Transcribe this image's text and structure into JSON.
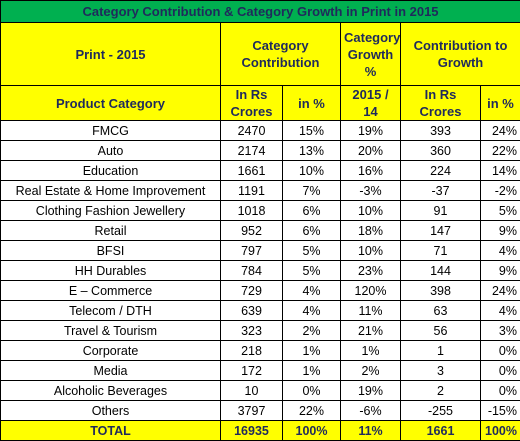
{
  "title": "Category Contribution & Category Growth in Print in 2015",
  "header": {
    "group_row": [
      "Print - 2015",
      "Category Contribution",
      "Category Growth %",
      "Contribution to Growth"
    ],
    "sub_row": [
      "Product Category",
      "In Rs Crores",
      "in %",
      "2015 / 14",
      "In Rs Crores",
      "in %"
    ]
  },
  "table": {
    "rows": [
      [
        "FMCG",
        "2470",
        "15%",
        "19%",
        "393",
        "24%"
      ],
      [
        "Auto",
        "2174",
        "13%",
        "20%",
        "360",
        "22%"
      ],
      [
        "Education",
        "1661",
        "10%",
        "16%",
        "224",
        "14%"
      ],
      [
        "Real Estate & Home Improvement",
        "1191",
        "7%",
        "-3%",
        "-37",
        "-2%"
      ],
      [
        "Clothing Fashion Jewellery",
        "1018",
        "6%",
        "10%",
        "91",
        "5%"
      ],
      [
        "Retail",
        "952",
        "6%",
        "18%",
        "147",
        "9%"
      ],
      [
        "BFSI",
        "797",
        "5%",
        "10%",
        "71",
        "4%"
      ],
      [
        "HH Durables",
        "784",
        "5%",
        "23%",
        "144",
        "9%"
      ],
      [
        "E – Commerce",
        "729",
        "4%",
        "120%",
        "398",
        "24%"
      ],
      [
        "Telecom / DTH",
        "639",
        "4%",
        "11%",
        "63",
        "4%"
      ],
      [
        "Travel & Tourism",
        "323",
        "2%",
        "21%",
        "56",
        "3%"
      ],
      [
        "Corporate",
        "218",
        "1%",
        "1%",
        "1",
        "0%"
      ],
      [
        "Media",
        "172",
        "1%",
        "2%",
        "3",
        "0%"
      ],
      [
        "Alcoholic Beverages",
        "10",
        "0%",
        "19%",
        "2",
        "0%"
      ],
      [
        "Others",
        "3797",
        "22%",
        "-6%",
        "-255",
        "-15%"
      ]
    ],
    "total": [
      "TOTAL",
      "16935",
      "100%",
      "11%",
      "1661",
      "100%"
    ]
  }
}
